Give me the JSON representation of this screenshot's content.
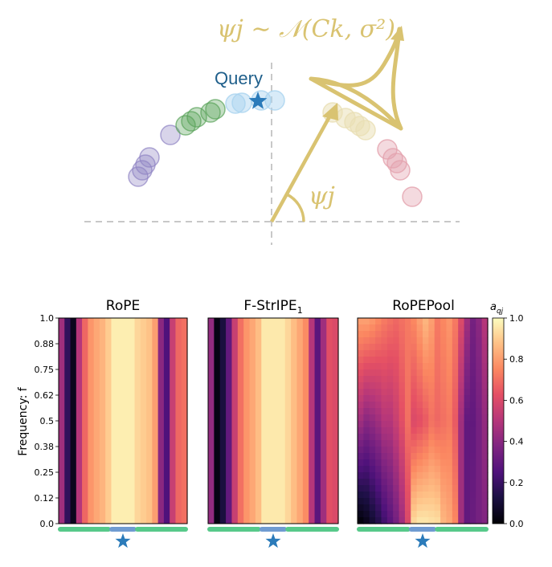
{
  "diagram": {
    "formula": "ψj ∼ 𝒩(Ck, σ²)",
    "angle_label": "ψj",
    "query_label": "Query",
    "colors": {
      "axis": "#c8c8c8",
      "gold": "#d9c371",
      "query": "#1f5f8b",
      "star": "#2b7bba",
      "purple": "#8f83c3",
      "green": "#5aa25a",
      "blue": "#a9d3ef",
      "pale": "#e9dfb4",
      "pink": "#e4a2ae"
    }
  },
  "chart_data": {
    "type": "heatmap",
    "ylabel": "Frequency: f",
    "ylim": [
      0,
      1
    ],
    "yticks": [
      "1.0",
      "0.88",
      "0.75",
      "0.62",
      "0.5",
      "0.38",
      "0.25",
      "0.12",
      "0.0"
    ],
    "colorbar": {
      "label": "aqj",
      "ticks": [
        "1.0",
        "0.8",
        "0.6",
        "0.4",
        "0.2",
        "0.0"
      ],
      "range": [
        0,
        1
      ],
      "colormap": "magma"
    },
    "segment_colors": {
      "context": "#57c98a",
      "query": "#6f9bd1"
    },
    "panels": [
      {
        "title": "RoPE",
        "columns": [
          0.45,
          0.18,
          0.05,
          0.5,
          0.68,
          0.78,
          0.82,
          0.85,
          0.9,
          0.97,
          0.97,
          0.97,
          0.97,
          0.92,
          0.9,
          0.88,
          0.8,
          0.4,
          0.25,
          0.55,
          0.68,
          0.7
        ]
      },
      {
        "title": "F-StrIPE1",
        "columns": [
          0.42,
          0.03,
          0.12,
          0.3,
          0.55,
          0.7,
          0.78,
          0.82,
          0.87,
          0.96,
          0.96,
          0.96,
          0.96,
          0.92,
          0.87,
          0.82,
          0.76,
          0.5,
          0.28,
          0.45,
          0.62,
          0.6
        ]
      },
      {
        "title": "RoPEPool",
        "top_columns": [
          0.8,
          0.8,
          0.78,
          0.75,
          0.72,
          0.7,
          0.68,
          0.7,
          0.72,
          0.75,
          0.8,
          0.85,
          0.8,
          0.72,
          0.75,
          0.78,
          0.72,
          0.6,
          0.45,
          0.35,
          0.4,
          0.5
        ],
        "bottom_columns": [
          0.02,
          0.05,
          0.1,
          0.15,
          0.22,
          0.28,
          0.35,
          0.45,
          0.6,
          0.92,
          0.95,
          0.95,
          0.94,
          0.93,
          0.85,
          0.82,
          0.75,
          0.45,
          0.3,
          0.32,
          0.35,
          0.38
        ],
        "mid_columns": [
          0.45,
          0.4,
          0.42,
          0.45,
          0.5,
          0.5,
          0.55,
          0.62,
          0.7,
          0.6,
          0.62,
          0.65,
          0.7,
          0.68,
          0.7,
          0.72,
          0.65,
          0.45,
          0.3,
          0.3,
          0.35,
          0.42
        ]
      }
    ]
  }
}
